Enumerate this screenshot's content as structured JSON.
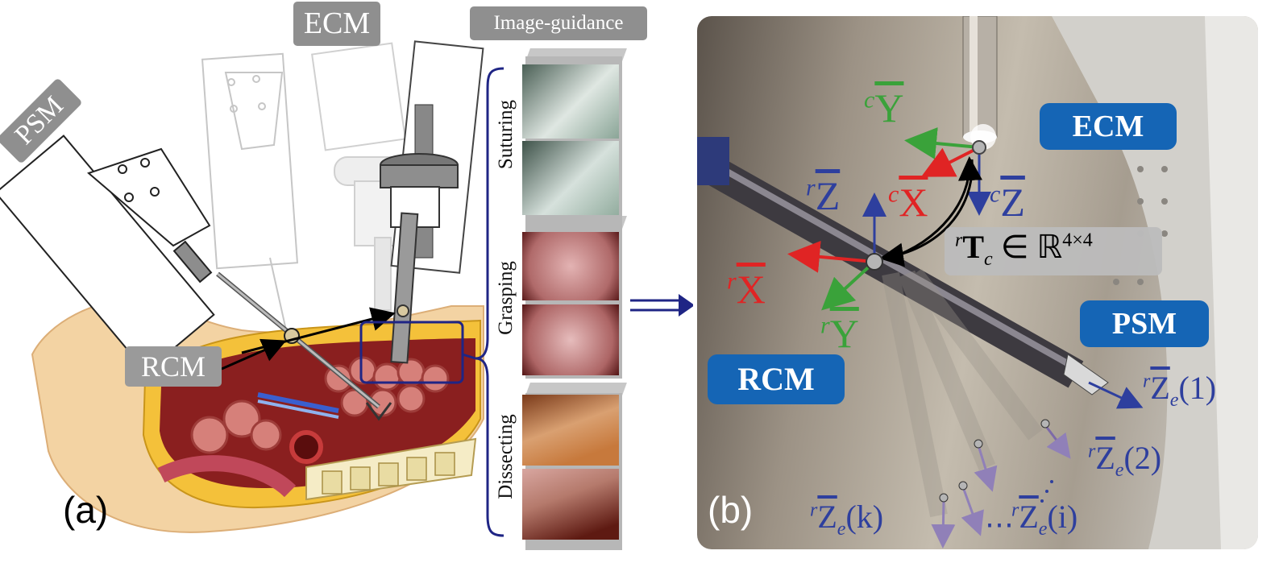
{
  "panel_a": {
    "label": "(a)",
    "tags": {
      "psm": "PSM",
      "ecm": "ECM",
      "rcm": "RCM",
      "guidance": "Image-guidance"
    },
    "steps": [
      "Suturing",
      "Grasping",
      "Dissecting"
    ]
  },
  "panel_b": {
    "label": "(b)",
    "pills": {
      "ecm": "ECM",
      "psm": "PSM",
      "rcm": "RCM"
    },
    "axes": {
      "cY": {
        "sup": "c",
        "sym": "Y"
      },
      "cX": {
        "sup": "c",
        "sym": "X"
      },
      "cZ": {
        "sup": "c",
        "sym": "Z"
      },
      "rZ": {
        "sup": "r",
        "sym": "Z"
      },
      "rX": {
        "sup": "r",
        "sym": "X"
      },
      "rY": {
        "sup": "r",
        "sym": "Y"
      }
    },
    "transform": {
      "sup": "r",
      "sym": "T",
      "sub": "c",
      "rest": " ∈ ℝ",
      "exp": "4×4"
    },
    "effector_axes": [
      {
        "sup": "r",
        "sym": "Z",
        "sub": "e",
        "arg": "(1)"
      },
      {
        "sup": "r",
        "sym": "Z",
        "sub": "e",
        "arg": "(2)"
      },
      {
        "sup": "r",
        "sym": "Z",
        "sub": "e",
        "arg": "(i)"
      },
      {
        "sup": "r",
        "sym": "Z",
        "sub": "e",
        "arg": "(k)"
      }
    ],
    "dots": "⋯"
  },
  "colors": {
    "gray_tag": "#8f8f8f",
    "pill_blue": "#1565b5",
    "axis_red": "#e02424",
    "axis_green": "#3aa23a",
    "axis_blue": "#2e3f9e",
    "navy": "#1f2585"
  }
}
